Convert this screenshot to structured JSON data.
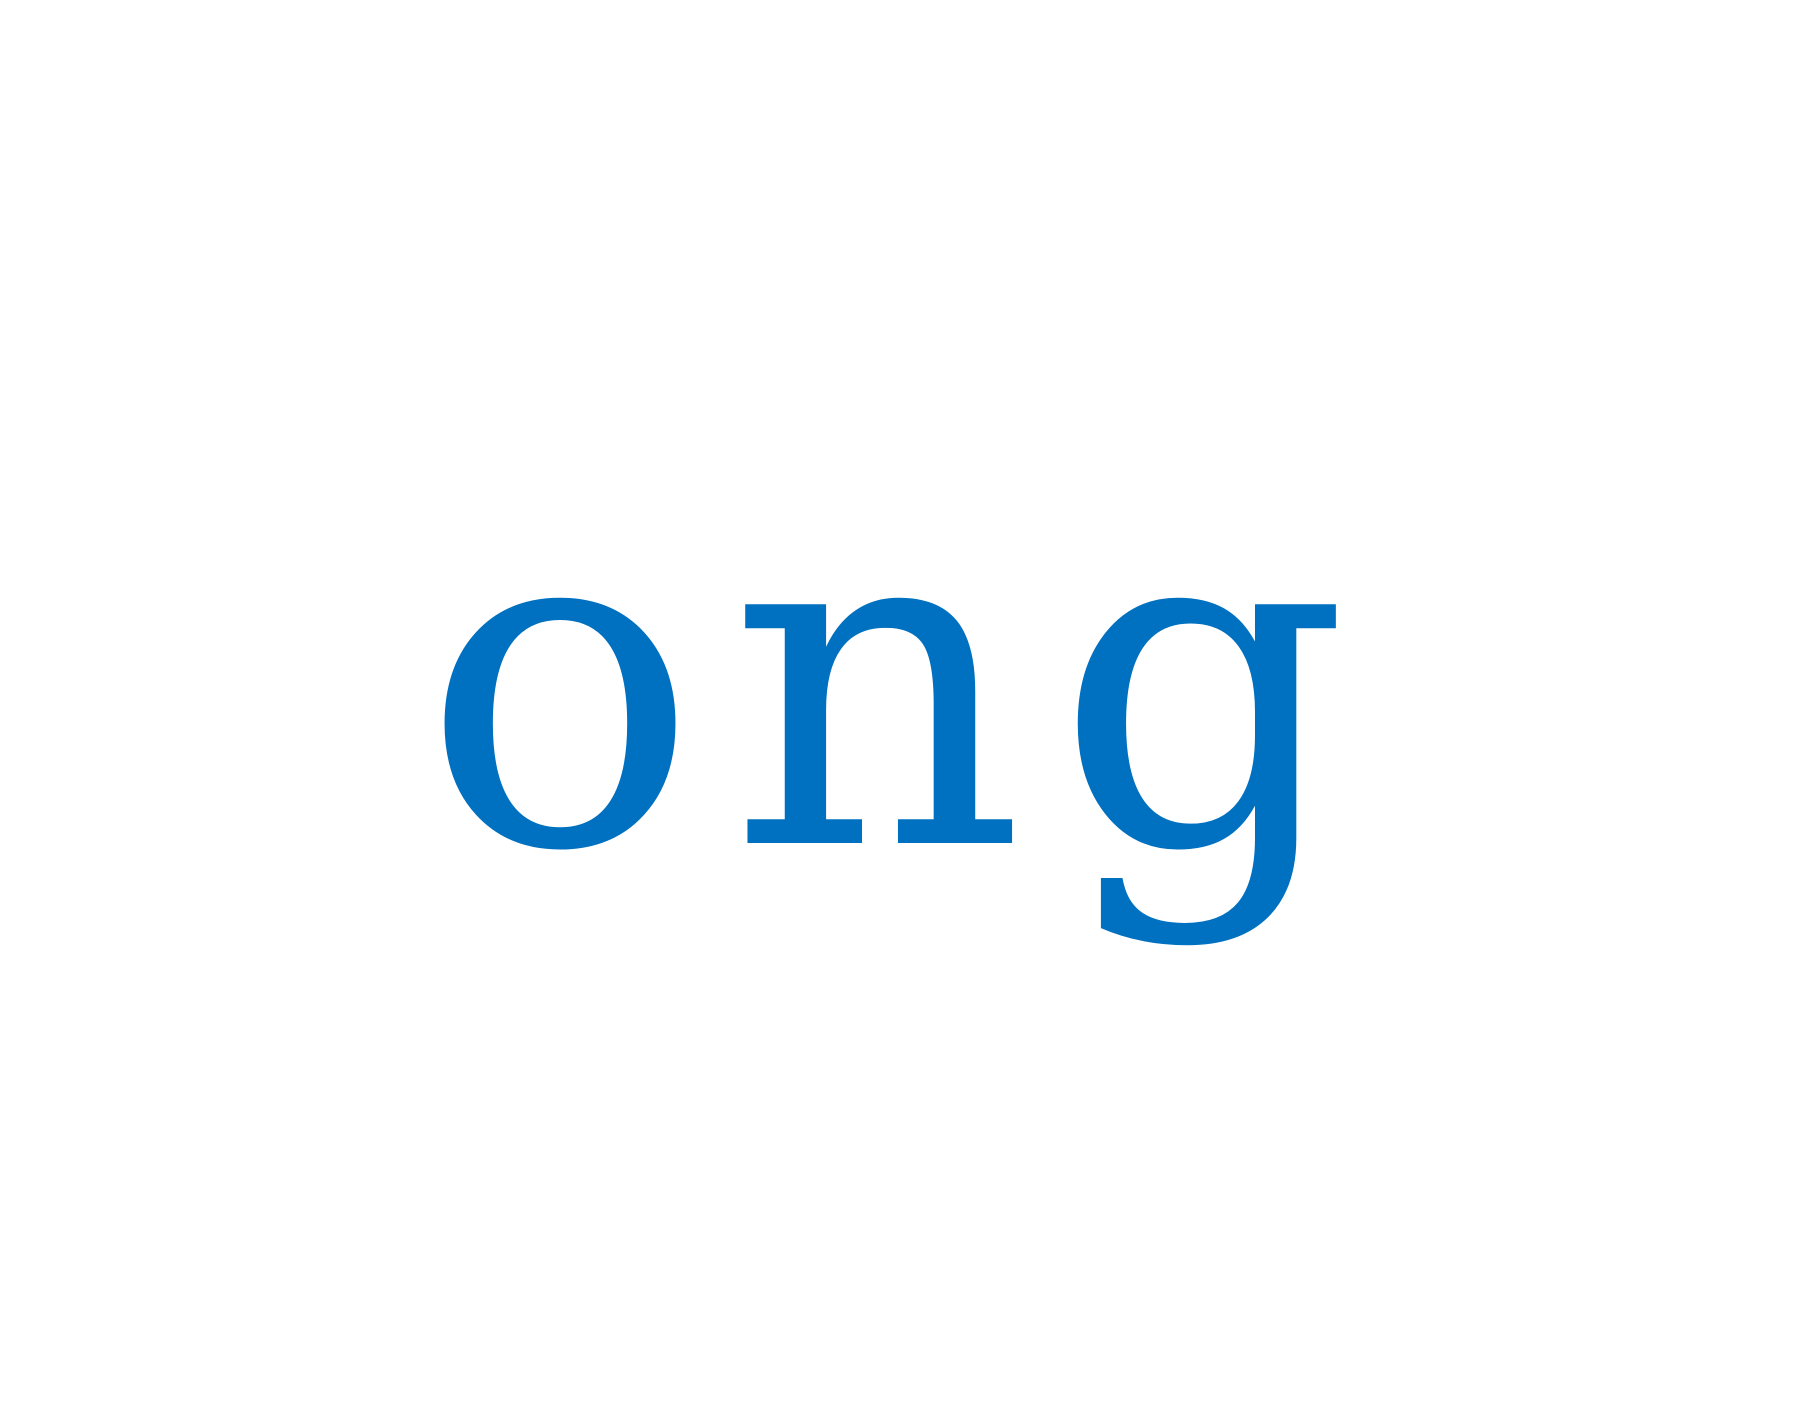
{
  "text": "ong",
  "color": "#0070c0"
}
